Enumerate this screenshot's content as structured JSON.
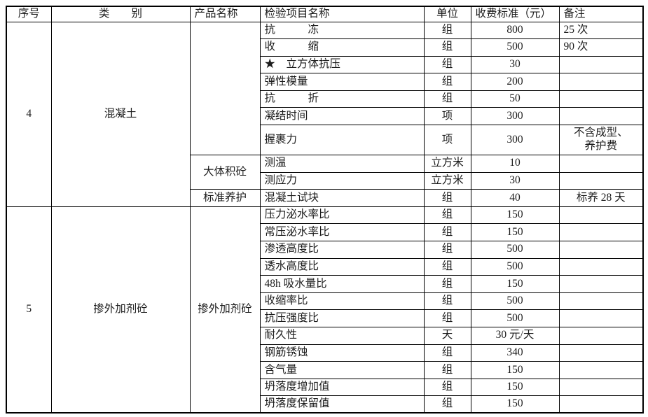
{
  "page": {
    "background": "#ffffff",
    "text_color": "#1c1c1c",
    "border_color": "#000000"
  },
  "table": {
    "columns": [
      {
        "key": "serial",
        "label": "序号",
        "align": "center"
      },
      {
        "key": "category",
        "label": "类　　别",
        "align": "center"
      },
      {
        "key": "product",
        "label": "产品名称",
        "align": "left"
      },
      {
        "key": "item",
        "label": "检验项目名称",
        "align": "left"
      },
      {
        "key": "unit",
        "label": "单位",
        "align": "center"
      },
      {
        "key": "fee",
        "label": "收费标准（元）",
        "align": "left"
      },
      {
        "key": "remark",
        "label": "备注",
        "align": "left"
      }
    ],
    "sections": [
      {
        "serial": "4",
        "category": "混凝土",
        "product_groups": [
          {
            "product": "",
            "rows": [
              {
                "item": "抗　　　冻",
                "unit": "组",
                "fee": "800",
                "remark": "25 次"
              },
              {
                "item": "收　　　缩",
                "unit": "组",
                "fee": "500",
                "remark": "90 次"
              },
              {
                "item": "★　立方体抗压",
                "unit": "组",
                "fee": "30",
                "remark": ""
              },
              {
                "item": "弹性模量",
                "unit": "组",
                "fee": "200",
                "remark": ""
              },
              {
                "item": "抗　　　折",
                "unit": "组",
                "fee": "50",
                "remark": ""
              },
              {
                "item": "凝结时间",
                "unit": "项",
                "fee": "300",
                "remark": ""
              },
              {
                "item": "握裹力",
                "unit": "项",
                "fee": "300",
                "remark": "不含成型、\n养护费",
                "remark_center": true,
                "tall": true
              }
            ]
          },
          {
            "product": "大体积砼",
            "rows": [
              {
                "item": "测温",
                "unit": "立方米",
                "fee": "10",
                "remark": ""
              },
              {
                "item": "测应力",
                "unit": "立方米",
                "fee": "30",
                "remark": ""
              }
            ]
          },
          {
            "product": "标准养护",
            "rows": [
              {
                "item": "混凝土试块",
                "unit": "组",
                "fee": "40",
                "remark": "标养 28 天",
                "remark_center": true
              }
            ]
          }
        ]
      },
      {
        "serial": "5",
        "category": "掺外加剂砼",
        "product_groups": [
          {
            "product": "掺外加剂砼",
            "rows": [
              {
                "item": "压力泌水率比",
                "unit": "组",
                "fee": "150",
                "remark": ""
              },
              {
                "item": "常压泌水率比",
                "unit": "组",
                "fee": "150",
                "remark": ""
              },
              {
                "item": "渗透高度比",
                "unit": "组",
                "fee": "500",
                "remark": ""
              },
              {
                "item": "透水高度比",
                "unit": "组",
                "fee": "500",
                "remark": ""
              },
              {
                "item": "48h 吸水量比",
                "unit": "组",
                "fee": "150",
                "remark": ""
              },
              {
                "item": "收缩率比",
                "unit": "组",
                "fee": "500",
                "remark": ""
              },
              {
                "item": "抗压强度比",
                "unit": "组",
                "fee": "500",
                "remark": ""
              },
              {
                "item": "耐久性",
                "unit": "天",
                "fee": "30 元/天",
                "remark": ""
              },
              {
                "item": "钢筋锈蚀",
                "unit": "组",
                "fee": "340",
                "remark": ""
              },
              {
                "item": "含气量",
                "unit": "组",
                "fee": "150",
                "remark": ""
              },
              {
                "item": "坍落度增加值",
                "unit": "组",
                "fee": "150",
                "remark": ""
              },
              {
                "item": "坍落度保留值",
                "unit": "组",
                "fee": "150",
                "remark": ""
              }
            ]
          }
        ]
      }
    ]
  }
}
